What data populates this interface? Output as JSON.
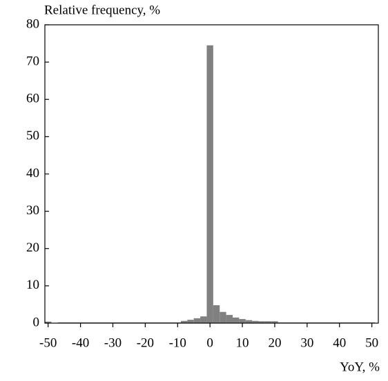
{
  "chart_data": {
    "type": "histogram",
    "title": "Relative frequency, %",
    "x_label": "YoY, %",
    "bins": [
      -51,
      -49,
      -47,
      -45,
      -43,
      -41,
      -39,
      -37,
      -35,
      -33,
      -31,
      -29,
      -27,
      -25,
      -23,
      -21,
      -19,
      -17,
      -15,
      -13,
      -11,
      -9,
      -7,
      -5,
      -3,
      -1,
      1,
      3,
      5,
      7,
      9,
      11,
      13,
      15,
      17,
      19,
      21,
      23,
      25,
      27,
      29,
      31,
      33,
      35,
      37,
      39,
      41,
      43,
      45,
      47,
      49,
      51
    ],
    "values": [
      0.4,
      0,
      0.2,
      0.2,
      0.2,
      0.2,
      0.2,
      0.2,
      0.2,
      0.2,
      0.2,
      0.2,
      0.2,
      0.2,
      0.2,
      0.2,
      0.2,
      0.2,
      0.2,
      0.2,
      0.2,
      0.6,
      0.9,
      1.3,
      1.8,
      74.5,
      4.8,
      3.0,
      2.2,
      1.5,
      1.1,
      0.8,
      0.6,
      0.5,
      0.5,
      0.5,
      0.2,
      0.2,
      0.2,
      0.2,
      0.2,
      0.2,
      0.2,
      0.2,
      0.2,
      0.2,
      0.2,
      0.2,
      0.2,
      0.2,
      0.2
    ],
    "color": "#808080",
    "xlim": [
      -51,
      52
    ],
    "ylim": [
      0,
      80
    ],
    "xticks": [
      -50,
      -40,
      -30,
      -20,
      -10,
      0,
      10,
      20,
      30,
      40,
      50
    ],
    "yticks": [
      0,
      10,
      20,
      30,
      40,
      50,
      60,
      70,
      80
    ]
  }
}
